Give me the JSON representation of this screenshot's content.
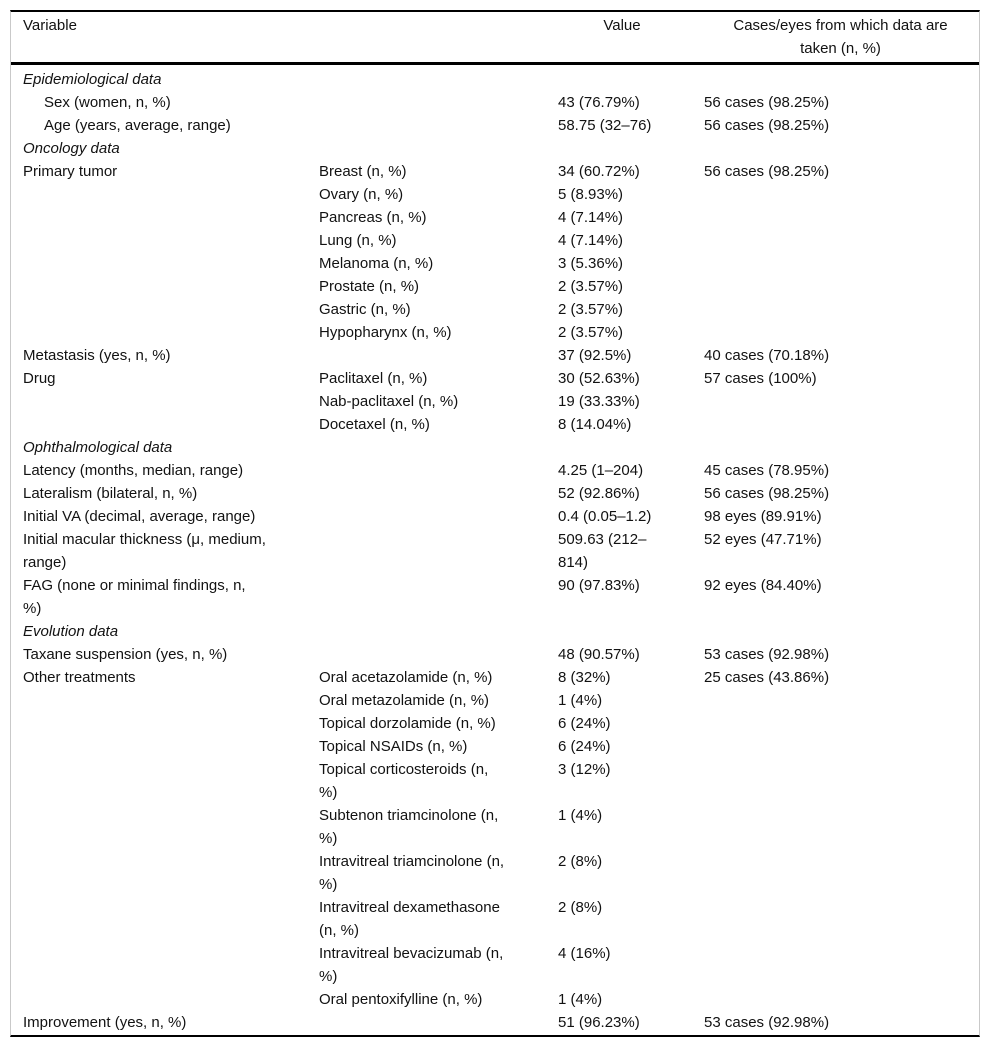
{
  "page": {
    "background_color": "#ffffff",
    "rule_color": "#000000",
    "side_border_color": "#c9c9c9",
    "text_color": "#121212"
  },
  "table": {
    "header": {
      "variable": "Variable",
      "value": "Value",
      "cases": "Cases/eyes from which data are\ntaken (n, %)"
    },
    "rows": [
      {
        "type": "section",
        "variable": "Epidemiological data",
        "sub": "",
        "value": "",
        "cases": ""
      },
      {
        "type": "data",
        "indent": true,
        "variable": "Sex (women, n, %)",
        "sub": "",
        "value": "43 (76.79%)",
        "cases": "56 cases (98.25%)"
      },
      {
        "type": "data",
        "indent": true,
        "variable": "Age (years, average, range)",
        "sub": "",
        "value": "58.75 (32–76)",
        "cases": "56 cases (98.25%)"
      },
      {
        "type": "section",
        "variable": "Oncology data",
        "sub": "",
        "value": "",
        "cases": ""
      },
      {
        "type": "data",
        "variable": "Primary tumor",
        "sub": "Breast (n, %)",
        "value": "34 (60.72%)",
        "cases": "56 cases (98.25%)"
      },
      {
        "type": "data",
        "variable": "",
        "sub": "Ovary (n, %)",
        "value": "5 (8.93%)",
        "cases": ""
      },
      {
        "type": "data",
        "variable": "",
        "sub": "Pancreas (n, %)",
        "value": "4 (7.14%)",
        "cases": ""
      },
      {
        "type": "data",
        "variable": "",
        "sub": "Lung (n, %)",
        "value": "4 (7.14%)",
        "cases": ""
      },
      {
        "type": "data",
        "variable": "",
        "sub": "Melanoma (n, %)",
        "value": "3 (5.36%)",
        "cases": ""
      },
      {
        "type": "data",
        "variable": "",
        "sub": "Prostate (n, %)",
        "value": "2 (3.57%)",
        "cases": ""
      },
      {
        "type": "data",
        "variable": "",
        "sub": "Gastric (n, %)",
        "value": "2 (3.57%)",
        "cases": ""
      },
      {
        "type": "data",
        "variable": "",
        "sub": "Hypopharynx (n, %)",
        "value": "2 (3.57%)",
        "cases": ""
      },
      {
        "type": "data",
        "variable": "Metastasis (yes, n, %)",
        "sub": "",
        "value": "37 (92.5%)",
        "cases": "40 cases (70.18%)"
      },
      {
        "type": "data",
        "variable": "Drug",
        "sub": "Paclitaxel (n, %)",
        "value": "30 (52.63%)",
        "cases": "57 cases (100%)"
      },
      {
        "type": "data",
        "variable": "",
        "sub": "Nab-paclitaxel (n, %)",
        "value": "19 (33.33%)",
        "cases": ""
      },
      {
        "type": "data",
        "variable": "",
        "sub": "Docetaxel (n, %)",
        "value": "8 (14.04%)",
        "cases": ""
      },
      {
        "type": "section",
        "variable": "Ophthalmological data",
        "sub": "",
        "value": "",
        "cases": ""
      },
      {
        "type": "data",
        "variable": "Latency (months, median, range)",
        "sub": "",
        "value": "4.25 (1–204)",
        "cases": "45 cases (78.95%)"
      },
      {
        "type": "data",
        "variable": "Lateralism (bilateral, n, %)",
        "sub": "",
        "value": "52 (92.86%)",
        "cases": "56 cases (98.25%)"
      },
      {
        "type": "data",
        "variable": "Initial VA (decimal, average, range)",
        "sub": "",
        "value": "0.4 (0.05–1.2)",
        "cases": "98 eyes (89.91%)"
      },
      {
        "type": "data",
        "variable": "Initial macular thickness (μ, medium,\nrange)",
        "sub": "",
        "value": "509.63 (212–\n814)",
        "cases": "52 eyes (47.71%)"
      },
      {
        "type": "data",
        "variable": "FAG (none or minimal findings, n,\n%)",
        "sub": "",
        "value": "90 (97.83%)",
        "cases": "92 eyes (84.40%)"
      },
      {
        "type": "section",
        "variable": "Evolution data",
        "sub": "",
        "value": "",
        "cases": ""
      },
      {
        "type": "data",
        "variable": "Taxane suspension (yes, n, %)",
        "sub": "",
        "value": "48 (90.57%)",
        "cases": "53 cases (92.98%)"
      },
      {
        "type": "data",
        "variable": "Other treatments",
        "sub": "Oral acetazolamide (n, %)",
        "value": "8 (32%)",
        "cases": "25 cases (43.86%)"
      },
      {
        "type": "data",
        "variable": "",
        "sub": "Oral metazolamide (n, %)",
        "value": "1 (4%)",
        "cases": ""
      },
      {
        "type": "data",
        "variable": "",
        "sub": "Topical dorzolamide (n, %)",
        "value": "6 (24%)",
        "cases": ""
      },
      {
        "type": "data",
        "variable": "",
        "sub": "Topical NSAIDs (n, %)",
        "value": "6 (24%)",
        "cases": ""
      },
      {
        "type": "data",
        "variable": "",
        "sub": "Topical corticosteroids (n,\n%)",
        "value": "3 (12%)",
        "cases": ""
      },
      {
        "type": "data",
        "variable": "",
        "sub": "Subtenon triamcinolone (n,\n%)",
        "value": "1 (4%)",
        "cases": ""
      },
      {
        "type": "data",
        "variable": "",
        "sub": "Intravitreal triamcinolone (n,\n%)",
        "value": "2 (8%)",
        "cases": ""
      },
      {
        "type": "data",
        "variable": "",
        "sub": "Intravitreal dexamethasone\n(n, %)",
        "value": "2 (8%)",
        "cases": ""
      },
      {
        "type": "data",
        "variable": "",
        "sub": "Intravitreal bevacizumab (n,\n%)",
        "value": "4 (16%)",
        "cases": ""
      },
      {
        "type": "data",
        "variable": "",
        "sub": "Oral pentoxifylline (n, %)",
        "value": "1 (4%)",
        "cases": ""
      },
      {
        "type": "data",
        "variable": "Improvement (yes, n, %)",
        "sub": "",
        "value": "51 (96.23%)",
        "cases": "53 cases (92.98%)"
      }
    ]
  }
}
